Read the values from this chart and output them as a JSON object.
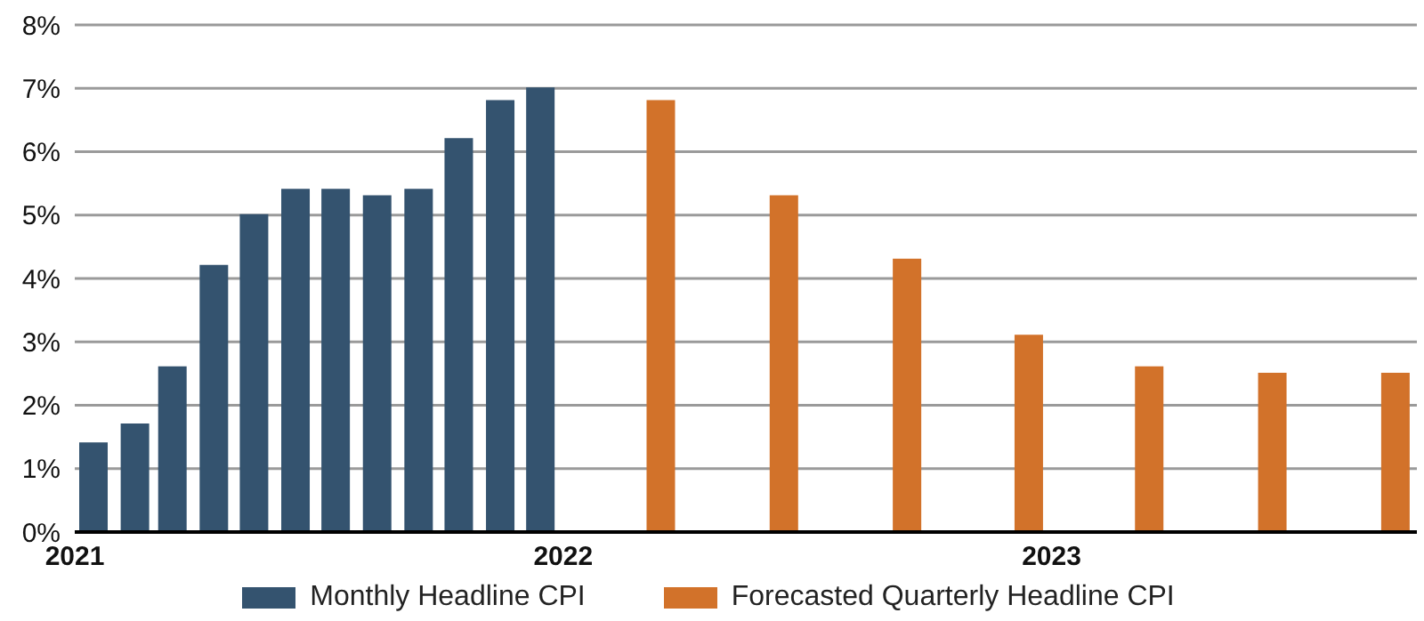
{
  "chart_data": {
    "type": "bar",
    "series": [
      {
        "name": "Monthly Headline CPI",
        "color": "#34536f",
        "x": [
          "2021-01-15",
          "2021-02-15",
          "2021-03-15",
          "2021-04-15",
          "2021-05-15",
          "2021-06-15",
          "2021-07-15",
          "2021-08-15",
          "2021-09-15",
          "2021-10-15",
          "2021-11-15",
          "2021-12-15"
        ],
        "values": [
          1.4,
          1.7,
          2.6,
          4.2,
          5.0,
          5.4,
          5.4,
          5.3,
          5.4,
          6.2,
          6.8,
          7.0
        ]
      },
      {
        "name": "Forecasted Quarterly Headline CPI",
        "color": "#d2722a",
        "x": [
          "2022-03-15",
          "2022-06-15",
          "2022-09-15",
          "2022-12-15",
          "2023-03-15",
          "2023-06-15",
          "2023-09-15"
        ],
        "values": [
          6.8,
          5.3,
          4.3,
          3.1,
          2.6,
          2.5,
          2.5
        ]
      }
    ],
    "xlim": [
      "2021",
      "2023-10"
    ],
    "xticks": [
      "2021",
      "2022",
      "2023"
    ],
    "ylim": [
      0,
      8
    ],
    "yticks": [
      {
        "value": 0,
        "label": "0%"
      },
      {
        "value": 1,
        "label": "1%"
      },
      {
        "value": 2,
        "label": "2%"
      },
      {
        "value": 3,
        "label": "3%"
      },
      {
        "value": 4,
        "label": "4%"
      },
      {
        "value": 5,
        "label": "5%"
      },
      {
        "value": 6,
        "label": "6%"
      },
      {
        "value": 7,
        "label": "7%"
      },
      {
        "value": 8,
        "label": "8%"
      }
    ],
    "grid": "y",
    "legend": "bottom"
  }
}
